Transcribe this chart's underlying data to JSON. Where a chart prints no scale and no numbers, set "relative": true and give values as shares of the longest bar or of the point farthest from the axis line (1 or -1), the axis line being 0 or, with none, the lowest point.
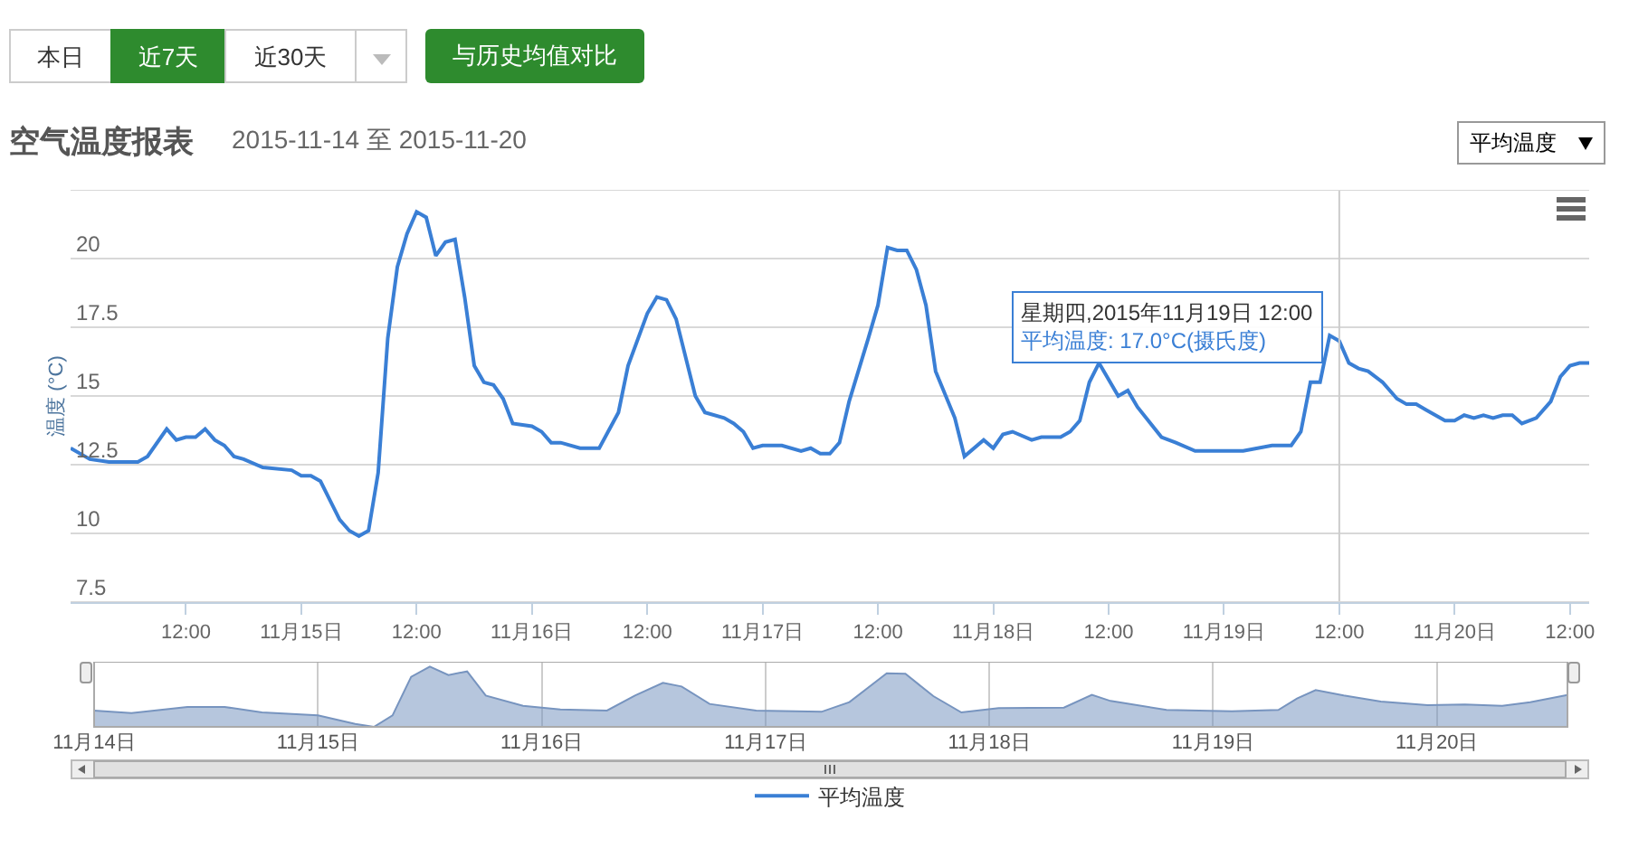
{
  "chart_data": [
    {
      "type": "line",
      "title": "空气温度报表",
      "subtitle": "2015-11-14 至 2015-11-20",
      "ylabel": "温度 (°C)",
      "annotations": [
        "本日",
        "近7天",
        "近30天",
        "与历史均值对比",
        "平均温度",
        {
          "text": "星期四,2015年11月19日 12:00\n平均温度: 17.0°C(摄氏度)",
          "x": "2015-11-19T12:00",
          "y": 17.0
        }
      ],
      "x": [
        "2015-11-14T00:00",
        "2015-11-14T02:00",
        "2015-11-14T04:00",
        "2015-11-14T07:00",
        "2015-11-14T08:00",
        "2015-11-14T10:00",
        "2015-11-14T11:00",
        "2015-11-14T12:00",
        "2015-11-14T13:00",
        "2015-11-14T14:00",
        "2015-11-14T15:00",
        "2015-11-14T16:00",
        "2015-11-14T17:00",
        "2015-11-14T18:00",
        "2015-11-14T20:00",
        "2015-11-14T23:00",
        "2015-11-15T00:00",
        "2015-11-15T01:00",
        "2015-11-15T02:00",
        "2015-11-15T03:00",
        "2015-11-15T04:00",
        "2015-11-15T05:00",
        "2015-11-15T06:00",
        "2015-11-15T07:00",
        "2015-11-15T08:00",
        "2015-11-15T09:00",
        "2015-11-15T10:00",
        "2015-11-15T11:00",
        "2015-11-15T12:00",
        "2015-11-15T13:00",
        "2015-11-15T14:00",
        "2015-11-15T15:00",
        "2015-11-15T16:00",
        "2015-11-15T17:00",
        "2015-11-15T18:00",
        "2015-11-15T19:00",
        "2015-11-15T20:00",
        "2015-11-15T21:00",
        "2015-11-15T22:00",
        "2015-11-16T00:00",
        "2015-11-16T01:00",
        "2015-11-16T02:00",
        "2015-11-16T03:00",
        "2015-11-16T05:00",
        "2015-11-16T07:00",
        "2015-11-16T09:00",
        "2015-11-16T10:00",
        "2015-11-16T12:00",
        "2015-11-16T13:00",
        "2015-11-16T14:00",
        "2015-11-16T15:00",
        "2015-11-16T17:00",
        "2015-11-16T18:00",
        "2015-11-16T20:00",
        "2015-11-16T21:00",
        "2015-11-16T22:00",
        "2015-11-16T23:00",
        "2015-11-17T00:00",
        "2015-11-17T02:00",
        "2015-11-17T04:00",
        "2015-11-17T05:00",
        "2015-11-17T06:00",
        "2015-11-17T07:00",
        "2015-11-17T08:00",
        "2015-11-17T09:00",
        "2015-11-17T11:00",
        "2015-11-17T12:00",
        "2015-11-17T13:00",
        "2015-11-17T14:00",
        "2015-11-17T15:00",
        "2015-11-17T16:00",
        "2015-11-17T17:00",
        "2015-11-17T18:00",
        "2015-11-17T20:00",
        "2015-11-17T21:00",
        "2015-11-17T23:00",
        "2015-11-18T00:00",
        "2015-11-18T01:00",
        "2015-11-18T02:00",
        "2015-11-18T04:00",
        "2015-11-18T05:00",
        "2015-11-18T07:00",
        "2015-11-18T08:00",
        "2015-11-18T09:00",
        "2015-11-18T10:00",
        "2015-11-18T11:00",
        "2015-11-18T13:00",
        "2015-11-18T14:00",
        "2015-11-18T15:00",
        "2015-11-18T17:30",
        "2015-11-18T19:00",
        "2015-11-18T21:00",
        "2015-11-19T02:00",
        "2015-11-19T05:00",
        "2015-11-19T07:00",
        "2015-11-19T08:00",
        "2015-11-19T09:00",
        "2015-11-19T10:00",
        "2015-11-19T11:00",
        "2015-11-19T12:00",
        "2015-11-19T13:00",
        "2015-11-19T14:00",
        "2015-11-19T15:00",
        "2015-11-19T16:30",
        "2015-11-19T18:00",
        "2015-11-19T19:00",
        "2015-11-19T20:00",
        "2015-11-19T21:00",
        "2015-11-19T23:00",
        "2015-11-20T00:00",
        "2015-11-20T01:00",
        "2015-11-20T02:00",
        "2015-11-20T03:00",
        "2015-11-20T04:00",
        "2015-11-20T05:00",
        "2015-11-20T06:00",
        "2015-11-20T07:00",
        "2015-11-20T08:30",
        "2015-11-20T10:00",
        "2015-11-20T11:00",
        "2015-11-20T12:00",
        "2015-11-20T13:00",
        "2015-11-20T14:00"
      ],
      "series": [
        {
          "name": "平均温度",
          "color": "#3a7fd5",
          "values": [
            13.1,
            12.7,
            12.6,
            12.6,
            12.8,
            13.8,
            13.4,
            13.5,
            13.5,
            13.8,
            13.4,
            13.2,
            12.8,
            12.7,
            12.4,
            12.3,
            12.1,
            12.1,
            11.9,
            11.2,
            10.5,
            10.1,
            9.9,
            10.1,
            12.2,
            17.1,
            19.7,
            20.9,
            21.7,
            21.5,
            20.1,
            20.6,
            20.7,
            18.6,
            16.1,
            15.5,
            15.4,
            14.9,
            14.0,
            13.9,
            13.7,
            13.3,
            13.3,
            13.1,
            13.1,
            14.4,
            16.1,
            18.0,
            18.6,
            18.5,
            17.8,
            15.0,
            14.4,
            14.2,
            14.0,
            13.7,
            13.1,
            13.2,
            13.2,
            13.0,
            13.1,
            12.9,
            12.9,
            13.3,
            14.8,
            17.1,
            18.3,
            20.4,
            20.3,
            20.3,
            19.6,
            18.3,
            15.9,
            14.2,
            12.8,
            13.4,
            13.1,
            13.6,
            13.7,
            13.4,
            13.5,
            13.5,
            13.7,
            14.1,
            15.5,
            16.2,
            15.0,
            15.2,
            14.6,
            13.5,
            13.3,
            13.0,
            13.0,
            13.2,
            13.2,
            13.7,
            15.5,
            15.5,
            17.2,
            17.0,
            16.2,
            16.0,
            15.9,
            15.5,
            14.9,
            14.7,
            14.7,
            14.5,
            14.1,
            14.1,
            14.3,
            14.2,
            14.3,
            14.2,
            14.3,
            14.3,
            14.0,
            14.2,
            14.8,
            15.7,
            16.1,
            16.2,
            16.2
          ]
        }
      ],
      "xlim": [
        "2015-11-14T00:00",
        "2015-11-20T14:00"
      ],
      "xticks": [
        {
          "value": "2015-11-14T12:00",
          "label": "12:00"
        },
        {
          "value": "2015-11-15T00:00",
          "label": "11月15日"
        },
        {
          "value": "2015-11-15T12:00",
          "label": "12:00"
        },
        {
          "value": "2015-11-16T00:00",
          "label": "11月16日"
        },
        {
          "value": "2015-11-16T12:00",
          "label": "12:00"
        },
        {
          "value": "2015-11-17T00:00",
          "label": "11月17日"
        },
        {
          "value": "2015-11-17T12:00",
          "label": "12:00"
        },
        {
          "value": "2015-11-18T00:00",
          "label": "11月18日"
        },
        {
          "value": "2015-11-18T12:00",
          "label": "12:00"
        },
        {
          "value": "2015-11-19T00:00",
          "label": "11月19日"
        },
        {
          "value": "2015-11-19T12:00",
          "label": "12:00"
        },
        {
          "value": "2015-11-20T00:00",
          "label": "11月20日"
        },
        {
          "value": "2015-11-20T12:00",
          "label": "12:00"
        }
      ],
      "ylim": [
        7.5,
        22.5
      ],
      "yticks": [
        7.5,
        10,
        12.5,
        15,
        17.5,
        20,
        {
          "value": 22.5,
          "label": null
        }
      ],
      "ref_lines": [
        {
          "axis": "x",
          "value": "2015-11-19T12:00",
          "color": "#cccccc"
        }
      ],
      "grid": "y",
      "legend": "bottom",
      "marker": "none"
    },
    {
      "type": "area",
      "relative": true,
      "x": [
        "2015-11-14T00:00",
        "2015-11-14T04:00",
        "2015-11-14T10:00",
        "2015-11-14T14:00",
        "2015-11-14T18:00",
        "2015-11-15T00:00",
        "2015-11-15T04:00",
        "2015-11-15T06:00",
        "2015-11-15T08:00",
        "2015-11-15T10:00",
        "2015-11-15T12:00",
        "2015-11-15T14:00",
        "2015-11-15T16:00",
        "2015-11-15T18:00",
        "2015-11-15T22:00",
        "2015-11-16T02:00",
        "2015-11-16T07:00",
        "2015-11-16T10:00",
        "2015-11-16T13:00",
        "2015-11-16T15:00",
        "2015-11-16T18:00",
        "2015-11-16T23:00",
        "2015-11-17T06:00",
        "2015-11-17T09:00",
        "2015-11-17T13:00",
        "2015-11-17T15:00",
        "2015-11-17T18:00",
        "2015-11-17T21:00",
        "2015-11-18T01:00",
        "2015-11-18T08:00",
        "2015-11-18T11:00",
        "2015-11-18T13:00",
        "2015-11-18T19:00",
        "2015-11-19T02:00",
        "2015-11-19T07:00",
        "2015-11-19T09:00",
        "2015-11-19T11:00",
        "2015-11-19T14:00",
        "2015-11-19T18:00",
        "2015-11-19T23:00",
        "2015-11-20T03:00",
        "2015-11-20T07:00",
        "2015-11-20T10:00",
        "2015-11-20T14:00"
      ],
      "series": [
        {
          "color": "#7794bf",
          "values": [
            0.27,
            0.23,
            0.33,
            0.33,
            0.24,
            0.19,
            0.05,
            0,
            0.19,
            0.83,
            1,
            0.86,
            0.92,
            0.52,
            0.35,
            0.29,
            0.27,
            0.52,
            0.73,
            0.67,
            0.38,
            0.27,
            0.25,
            0.41,
            0.89,
            0.88,
            0.51,
            0.24,
            0.31,
            0.32,
            0.53,
            0.43,
            0.28,
            0.26,
            0.28,
            0.47,
            0.61,
            0.52,
            0.42,
            0.36,
            0.37,
            0.35,
            0.41,
            0.53
          ]
        }
      ],
      "xlim": [
        "2015-11-14T00:00",
        "2015-11-20T14:00"
      ],
      "xticks": [
        {
          "value": "2015-11-14T00:00",
          "label": "11月14日"
        },
        {
          "value": "2015-11-15T00:00",
          "label": "11月15日"
        },
        {
          "value": "2015-11-16T00:00",
          "label": "11月16日"
        },
        {
          "value": "2015-11-17T00:00",
          "label": "11月17日"
        },
        {
          "value": "2015-11-18T00:00",
          "label": "11月18日"
        },
        {
          "value": "2015-11-19T00:00",
          "label": "11月19日"
        },
        {
          "value": "2015-11-20T00:00",
          "label": "11月20日"
        }
      ],
      "grid": "x"
    }
  ]
}
